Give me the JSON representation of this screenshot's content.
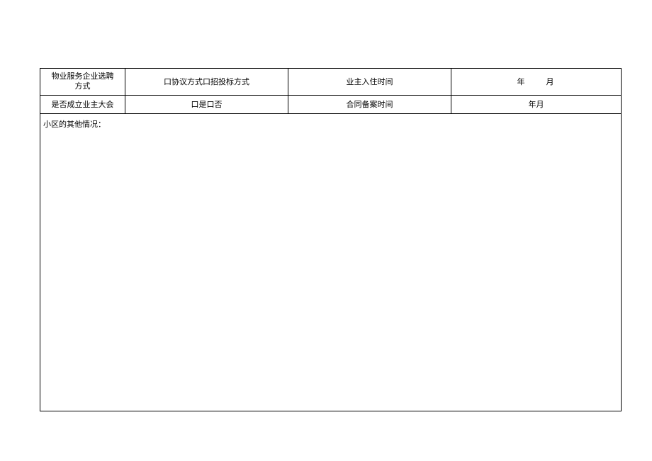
{
  "table": {
    "border_color": "#000000",
    "background_color": "#ffffff",
    "text_color": "#000000",
    "font_size": 11,
    "row1": {
      "label_line1": "物业服务企业选聘",
      "label_line2": "方式",
      "value1": "口协议方式口招投标方式",
      "label2": "业主入住时间",
      "value2_year": "年",
      "value2_month": "月"
    },
    "row2": {
      "label1": "是否成立业主大会",
      "value1": "口是口否",
      "label2": "合同备案时间",
      "value2": "年月"
    },
    "row3": {
      "label": "小区的其他情况："
    }
  }
}
